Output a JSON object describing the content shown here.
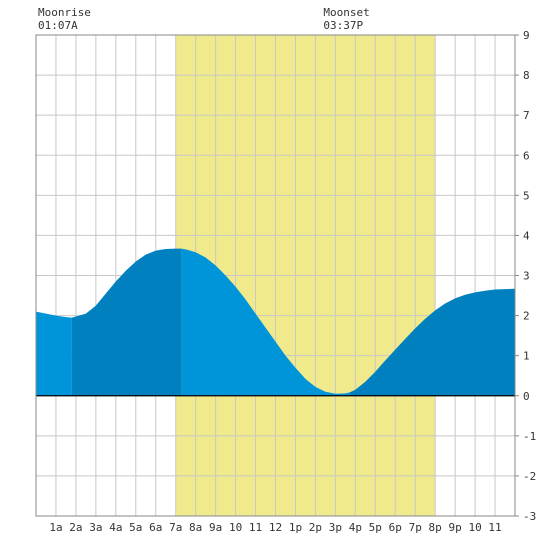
{
  "chart_data": {
    "type": "area",
    "title": "",
    "xlabel": "",
    "ylabel": "",
    "x_range_hours": [
      0,
      24
    ],
    "ylim": [
      -3,
      9
    ],
    "y_ticks": [
      -3,
      -2,
      -1,
      0,
      1,
      2,
      3,
      4,
      5,
      6,
      7,
      8,
      9
    ],
    "x_tick_labels": [
      "1a",
      "2a",
      "3a",
      "4a",
      "5a",
      "6a",
      "7a",
      "8a",
      "9a",
      "10",
      "11",
      "12",
      "1p",
      "2p",
      "3p",
      "4p",
      "5p",
      "6p",
      "7p",
      "8p",
      "9p",
      "10",
      "11"
    ],
    "grid": true,
    "daylight": {
      "start_hour": 7.0,
      "end_hour": 20.0,
      "color": "#f0ea8c"
    },
    "tide_series": {
      "x_hours": [
        0,
        0.5,
        1,
        1.5,
        1.8,
        2.5,
        3,
        3.5,
        4,
        4.5,
        5,
        5.5,
        6,
        6.5,
        7,
        7.3,
        7.6,
        8,
        8.5,
        9,
        9.5,
        10,
        10.5,
        11,
        11.5,
        12,
        12.5,
        13,
        13.5,
        14,
        14.5,
        15,
        15.5,
        15.7,
        16,
        16.5,
        17,
        17.5,
        18,
        18.5,
        19,
        19.5,
        20,
        20.5,
        21,
        21.5,
        22,
        22.5,
        23,
        23.5,
        24
      ],
      "y_feet": [
        2.1,
        2.05,
        2.0,
        1.96,
        1.95,
        2.05,
        2.25,
        2.55,
        2.85,
        3.12,
        3.35,
        3.52,
        3.62,
        3.66,
        3.67,
        3.67,
        3.64,
        3.58,
        3.45,
        3.25,
        3.0,
        2.72,
        2.4,
        2.05,
        1.7,
        1.35,
        1.0,
        0.7,
        0.42,
        0.22,
        0.1,
        0.05,
        0.06,
        0.08,
        0.15,
        0.35,
        0.6,
        0.88,
        1.15,
        1.42,
        1.68,
        1.92,
        2.13,
        2.3,
        2.43,
        2.52,
        2.58,
        2.62,
        2.65,
        2.66,
        2.67
      ]
    },
    "shade_bands": [
      {
        "start_hour": 0,
        "end_hour": 1.8,
        "color": "#0095d9"
      },
      {
        "start_hour": 1.8,
        "end_hour": 7.3,
        "color": "#0080bf"
      },
      {
        "start_hour": 7.3,
        "end_hour": 15.7,
        "color": "#0095d9"
      },
      {
        "start_hour": 15.7,
        "end_hour": 24,
        "color": "#0080bf"
      }
    ],
    "annotations": [
      {
        "label": "Moonrise",
        "time": "01:07A",
        "hour": 0.8
      },
      {
        "label": "Moonset",
        "time": "03:37P",
        "hour": 15.1
      }
    ]
  }
}
